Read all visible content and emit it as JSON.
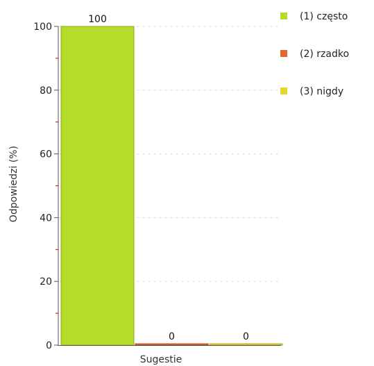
{
  "chart_data": {
    "type": "bar",
    "xlabel": "Sugestie",
    "ylabel": "Odpowiedzi (%)",
    "ylim": [
      0,
      100
    ],
    "yticks": [
      0,
      20,
      40,
      60,
      80,
      100
    ],
    "grid": true,
    "legend_position": "top-right",
    "series": [
      {
        "name": "(1) często",
        "value": 100,
        "label": "100",
        "color": "#b5dc2a"
      },
      {
        "name": "(2) rzadko",
        "value": 0,
        "label": "0",
        "color": "#e8642e"
      },
      {
        "name": "(3) nigdy",
        "value": 0,
        "label": "0",
        "color": "#e6d52a"
      }
    ]
  }
}
